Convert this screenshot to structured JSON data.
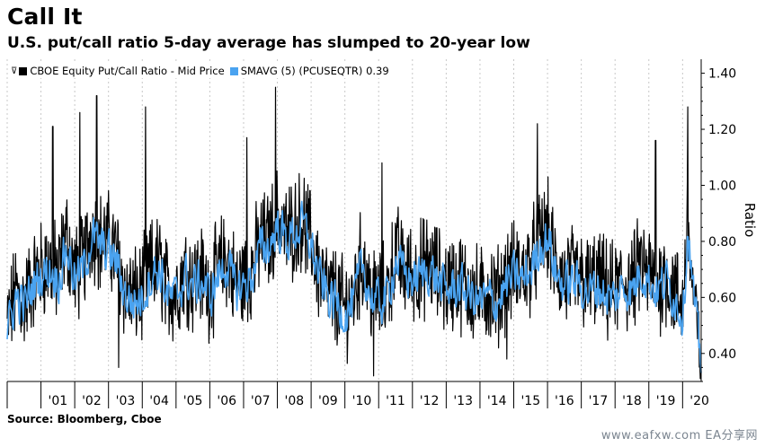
{
  "header": {
    "title": "Call It",
    "subtitle": "U.S. put/call ratio 5-day average has slumped to 20-year low"
  },
  "footer": {
    "source": "Source: Bloomberg, Cboe",
    "watermark": "www.eafxw.com  EA分享网"
  },
  "legend": {
    "glyph": "⊽",
    "items": [
      {
        "label": "CBOE Equity Put/Call Ratio - Mid Price",
        "color": "#000000"
      },
      {
        "label": "SMAVG (5) (PCUSEQTR) 0.39",
        "color": "#4aa3f0"
      }
    ]
  },
  "chart_data": {
    "type": "line",
    "title": "Call It",
    "subtitle": "U.S. put/call ratio 5-day average has slumped to 20-year low",
    "ylabel": "Ratio",
    "ylim": [
      0.3,
      1.45
    ],
    "yticks": [
      1.4,
      1.2,
      1.0,
      0.8,
      0.6,
      0.4
    ],
    "ytick_labels": [
      "1.40",
      "1.20",
      "1.00",
      "0.80",
      "0.60",
      "0.40"
    ],
    "y_axis_side": "right",
    "xlim": [
      2000.0,
      2020.55
    ],
    "categories": [
      "'01",
      "'02",
      "'03",
      "'04",
      "'05",
      "'06",
      "'07",
      "'08",
      "'09",
      "'10",
      "'11",
      "'12",
      "'13",
      "'14",
      "'15",
      "'16",
      "'17",
      "'18",
      "'19",
      "'20"
    ],
    "legend_position": "top-left",
    "grid": "vertical dashed at year boundaries",
    "series": [
      {
        "name": "CBOE Equity Put/Call Ratio - Mid Price",
        "color": "#000000",
        "style": "daily, high-frequency",
        "points": [
          [
            2000.0,
            0.5
          ],
          [
            2000.25,
            0.62
          ],
          [
            2000.5,
            0.58
          ],
          [
            2000.75,
            0.66
          ],
          [
            2001.0,
            0.7
          ],
          [
            2001.25,
            0.72
          ],
          [
            2001.5,
            0.68
          ],
          [
            2001.75,
            0.82
          ],
          [
            2002.0,
            0.68
          ],
          [
            2002.25,
            0.72
          ],
          [
            2002.5,
            0.85
          ],
          [
            2002.75,
            0.8
          ],
          [
            2003.0,
            0.8
          ],
          [
            2003.25,
            0.75
          ],
          [
            2003.5,
            0.62
          ],
          [
            2003.75,
            0.6
          ],
          [
            2004.0,
            0.62
          ],
          [
            2004.25,
            0.7
          ],
          [
            2004.5,
            0.72
          ],
          [
            2004.75,
            0.62
          ],
          [
            2005.0,
            0.62
          ],
          [
            2005.25,
            0.7
          ],
          [
            2005.5,
            0.66
          ],
          [
            2005.75,
            0.68
          ],
          [
            2006.0,
            0.62
          ],
          [
            2006.25,
            0.7
          ],
          [
            2006.5,
            0.74
          ],
          [
            2006.75,
            0.65
          ],
          [
            2007.0,
            0.66
          ],
          [
            2007.25,
            0.7
          ],
          [
            2007.5,
            0.8
          ],
          [
            2007.75,
            0.8
          ],
          [
            2008.0,
            0.9
          ],
          [
            2008.25,
            0.82
          ],
          [
            2008.5,
            0.85
          ],
          [
            2008.75,
            0.88
          ],
          [
            2009.0,
            0.8
          ],
          [
            2009.25,
            0.68
          ],
          [
            2009.5,
            0.62
          ],
          [
            2009.75,
            0.6
          ],
          [
            2010.0,
            0.56
          ],
          [
            2010.25,
            0.6
          ],
          [
            2010.5,
            0.74
          ],
          [
            2010.75,
            0.62
          ],
          [
            2011.0,
            0.6
          ],
          [
            2011.25,
            0.62
          ],
          [
            2011.5,
            0.76
          ],
          [
            2011.75,
            0.7
          ],
          [
            2012.0,
            0.68
          ],
          [
            2012.25,
            0.7
          ],
          [
            2012.5,
            0.72
          ],
          [
            2012.75,
            0.68
          ],
          [
            2013.0,
            0.64
          ],
          [
            2013.25,
            0.66
          ],
          [
            2013.5,
            0.65
          ],
          [
            2013.75,
            0.62
          ],
          [
            2014.0,
            0.6
          ],
          [
            2014.25,
            0.62
          ],
          [
            2014.5,
            0.6
          ],
          [
            2014.75,
            0.66
          ],
          [
            2015.0,
            0.7
          ],
          [
            2015.25,
            0.68
          ],
          [
            2015.5,
            0.72
          ],
          [
            2015.75,
            0.8
          ],
          [
            2016.0,
            0.84
          ],
          [
            2016.25,
            0.7
          ],
          [
            2016.5,
            0.66
          ],
          [
            2016.75,
            0.68
          ],
          [
            2017.0,
            0.66
          ],
          [
            2017.25,
            0.64
          ],
          [
            2017.5,
            0.66
          ],
          [
            2017.75,
            0.62
          ],
          [
            2018.0,
            0.62
          ],
          [
            2018.25,
            0.66
          ],
          [
            2018.5,
            0.64
          ],
          [
            2018.75,
            0.72
          ],
          [
            2019.0,
            0.68
          ],
          [
            2019.25,
            0.64
          ],
          [
            2019.5,
            0.68
          ],
          [
            2019.75,
            0.62
          ],
          [
            2020.0,
            0.56
          ],
          [
            2020.15,
            0.9
          ],
          [
            2020.25,
            0.7
          ],
          [
            2020.4,
            0.52
          ],
          [
            2020.5,
            0.4
          ],
          [
            2020.55,
            0.38
          ]
        ]
      },
      {
        "name": "SMAVG (5) (PCUSEQTR) 0.39",
        "color": "#4aa3f0",
        "style": "5-day moving average",
        "last_value": 0.39,
        "points": [
          [
            2000.0,
            0.48
          ],
          [
            2000.25,
            0.6
          ],
          [
            2000.5,
            0.57
          ],
          [
            2000.75,
            0.64
          ],
          [
            2001.0,
            0.68
          ],
          [
            2001.25,
            0.7
          ],
          [
            2001.5,
            0.66
          ],
          [
            2001.75,
            0.78
          ],
          [
            2002.0,
            0.66
          ],
          [
            2002.25,
            0.7
          ],
          [
            2002.5,
            0.82
          ],
          [
            2002.75,
            0.78
          ],
          [
            2003.0,
            0.76
          ],
          [
            2003.25,
            0.72
          ],
          [
            2003.5,
            0.6
          ],
          [
            2003.75,
            0.58
          ],
          [
            2004.0,
            0.6
          ],
          [
            2004.25,
            0.68
          ],
          [
            2004.5,
            0.7
          ],
          [
            2004.75,
            0.6
          ],
          [
            2005.0,
            0.6
          ],
          [
            2005.25,
            0.68
          ],
          [
            2005.5,
            0.64
          ],
          [
            2005.75,
            0.66
          ],
          [
            2006.0,
            0.6
          ],
          [
            2006.25,
            0.68
          ],
          [
            2006.5,
            0.72
          ],
          [
            2006.75,
            0.63
          ],
          [
            2007.0,
            0.64
          ],
          [
            2007.25,
            0.68
          ],
          [
            2007.5,
            0.78
          ],
          [
            2007.75,
            0.78
          ],
          [
            2008.0,
            0.86
          ],
          [
            2008.25,
            0.8
          ],
          [
            2008.5,
            0.83
          ],
          [
            2008.75,
            0.86
          ],
          [
            2009.0,
            0.78
          ],
          [
            2009.25,
            0.66
          ],
          [
            2009.5,
            0.6
          ],
          [
            2009.75,
            0.58
          ],
          [
            2010.0,
            0.54
          ],
          [
            2010.25,
            0.58
          ],
          [
            2010.5,
            0.72
          ],
          [
            2010.75,
            0.6
          ],
          [
            2011.0,
            0.58
          ],
          [
            2011.25,
            0.6
          ],
          [
            2011.5,
            0.74
          ],
          [
            2011.75,
            0.68
          ],
          [
            2012.0,
            0.66
          ],
          [
            2012.25,
            0.68
          ],
          [
            2012.5,
            0.7
          ],
          [
            2012.75,
            0.66
          ],
          [
            2013.0,
            0.62
          ],
          [
            2013.25,
            0.64
          ],
          [
            2013.5,
            0.63
          ],
          [
            2013.75,
            0.6
          ],
          [
            2014.0,
            0.58
          ],
          [
            2014.25,
            0.6
          ],
          [
            2014.5,
            0.58
          ],
          [
            2014.75,
            0.64
          ],
          [
            2015.0,
            0.68
          ],
          [
            2015.25,
            0.66
          ],
          [
            2015.5,
            0.7
          ],
          [
            2015.75,
            0.78
          ],
          [
            2016.0,
            0.82
          ],
          [
            2016.25,
            0.68
          ],
          [
            2016.5,
            0.64
          ],
          [
            2016.75,
            0.66
          ],
          [
            2017.0,
            0.64
          ],
          [
            2017.25,
            0.62
          ],
          [
            2017.5,
            0.64
          ],
          [
            2017.75,
            0.6
          ],
          [
            2018.0,
            0.6
          ],
          [
            2018.25,
            0.64
          ],
          [
            2018.5,
            0.62
          ],
          [
            2018.75,
            0.7
          ],
          [
            2019.0,
            0.66
          ],
          [
            2019.25,
            0.62
          ],
          [
            2019.5,
            0.66
          ],
          [
            2019.75,
            0.6
          ],
          [
            2020.0,
            0.54
          ],
          [
            2020.15,
            0.86
          ],
          [
            2020.25,
            0.68
          ],
          [
            2020.4,
            0.5
          ],
          [
            2020.5,
            0.4
          ],
          [
            2020.55,
            0.39
          ]
        ]
      }
    ],
    "annotated_points": [
      {
        "x": 2001.35,
        "y": 1.21
      },
      {
        "x": 2002.15,
        "y": 1.26
      },
      {
        "x": 2002.65,
        "y": 1.32
      },
      {
        "x": 2004.1,
        "y": 1.28
      },
      {
        "x": 2003.3,
        "y": 0.35
      },
      {
        "x": 2007.1,
        "y": 1.17
      },
      {
        "x": 2007.95,
        "y": 1.35
      },
      {
        "x": 2010.85,
        "y": 0.32
      },
      {
        "x": 2011.1,
        "y": 1.08
      },
      {
        "x": 2014.8,
        "y": 0.38
      },
      {
        "x": 2015.7,
        "y": 1.22
      },
      {
        "x": 2019.2,
        "y": 1.16
      },
      {
        "x": 2020.15,
        "y": 1.28
      },
      {
        "x": 2020.55,
        "y": 0.36
      }
    ]
  }
}
